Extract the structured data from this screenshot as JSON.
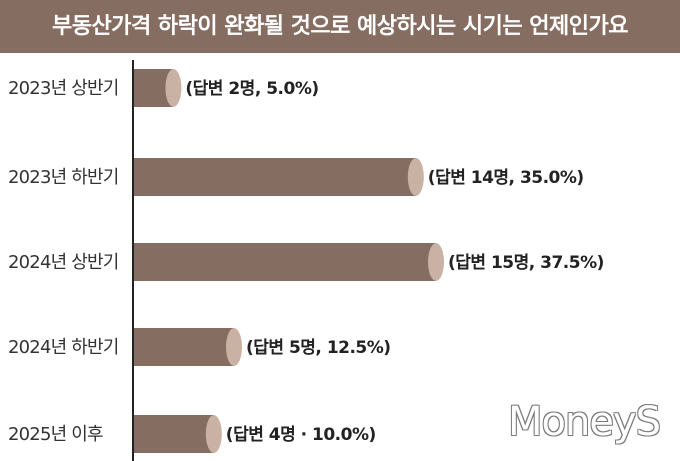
{
  "title": "부동산가격 하락이 완화될 것으로 예상하시는 시기는 언제인가요",
  "watermark": "MoneyS",
  "colors": {
    "title_bg": "#866d62",
    "bar_body": "#866d62",
    "bar_cap": "#c9b1a3",
    "axis": "#222222"
  },
  "chart_data": {
    "type": "bar",
    "orientation": "horizontal",
    "title": "부동산가격 하락이 완화될 것으로 예상하시는 시기는 언제인가요",
    "categories": [
      "2023년 상반기",
      "2023년 하반기",
      "2024년 상반기",
      "2024년 하반기",
      "2025년 이후"
    ],
    "series": [
      {
        "values": [
          5.0,
          35.0,
          37.5,
          12.5,
          10.0
        ]
      }
    ],
    "counts": [
      2,
      14,
      15,
      5,
      4
    ],
    "data_labels": [
      "(답변 2명, 5.0%)",
      "(답변 14명, 35.0%)",
      "(답변 15명, 37.5%)",
      "(답변 5명, 12.5%)",
      "(답변 4명 · 10.0%)"
    ],
    "xlabel": "",
    "ylabel": "",
    "grid": false,
    "legend": "none"
  }
}
